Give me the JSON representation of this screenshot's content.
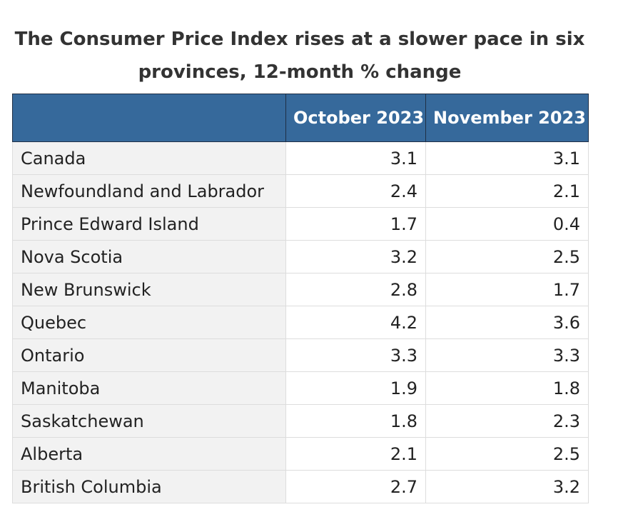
{
  "title": "The Consumer Price Index rises at a slower pace in six provinces, 12-month % change",
  "colors": {
    "header_background": "#36699b",
    "header_text": "#ffffff",
    "label_column_background": "#f2f2f2"
  },
  "chart_data": {
    "type": "table",
    "title": "The Consumer Price Index rises at a slower pace in six provinces, 12-month % change",
    "columns": [
      "",
      "October 2023",
      "November 2023"
    ],
    "rows": [
      [
        "Canada",
        "3.1",
        "3.1"
      ],
      [
        "Newfoundland and Labrador",
        "2.4",
        "2.1"
      ],
      [
        "Prince Edward Island",
        "1.7",
        "0.4"
      ],
      [
        "Nova Scotia",
        "3.2",
        "2.5"
      ],
      [
        "New Brunswick",
        "2.8",
        "1.7"
      ],
      [
        "Quebec",
        "4.2",
        "3.6"
      ],
      [
        "Ontario",
        "3.3",
        "3.3"
      ],
      [
        "Manitoba",
        "1.9",
        "1.8"
      ],
      [
        "Saskatchewan",
        "1.8",
        "2.3"
      ],
      [
        "Alberta",
        "2.1",
        "2.5"
      ],
      [
        "British Columbia",
        "2.7",
        "3.2"
      ]
    ]
  }
}
